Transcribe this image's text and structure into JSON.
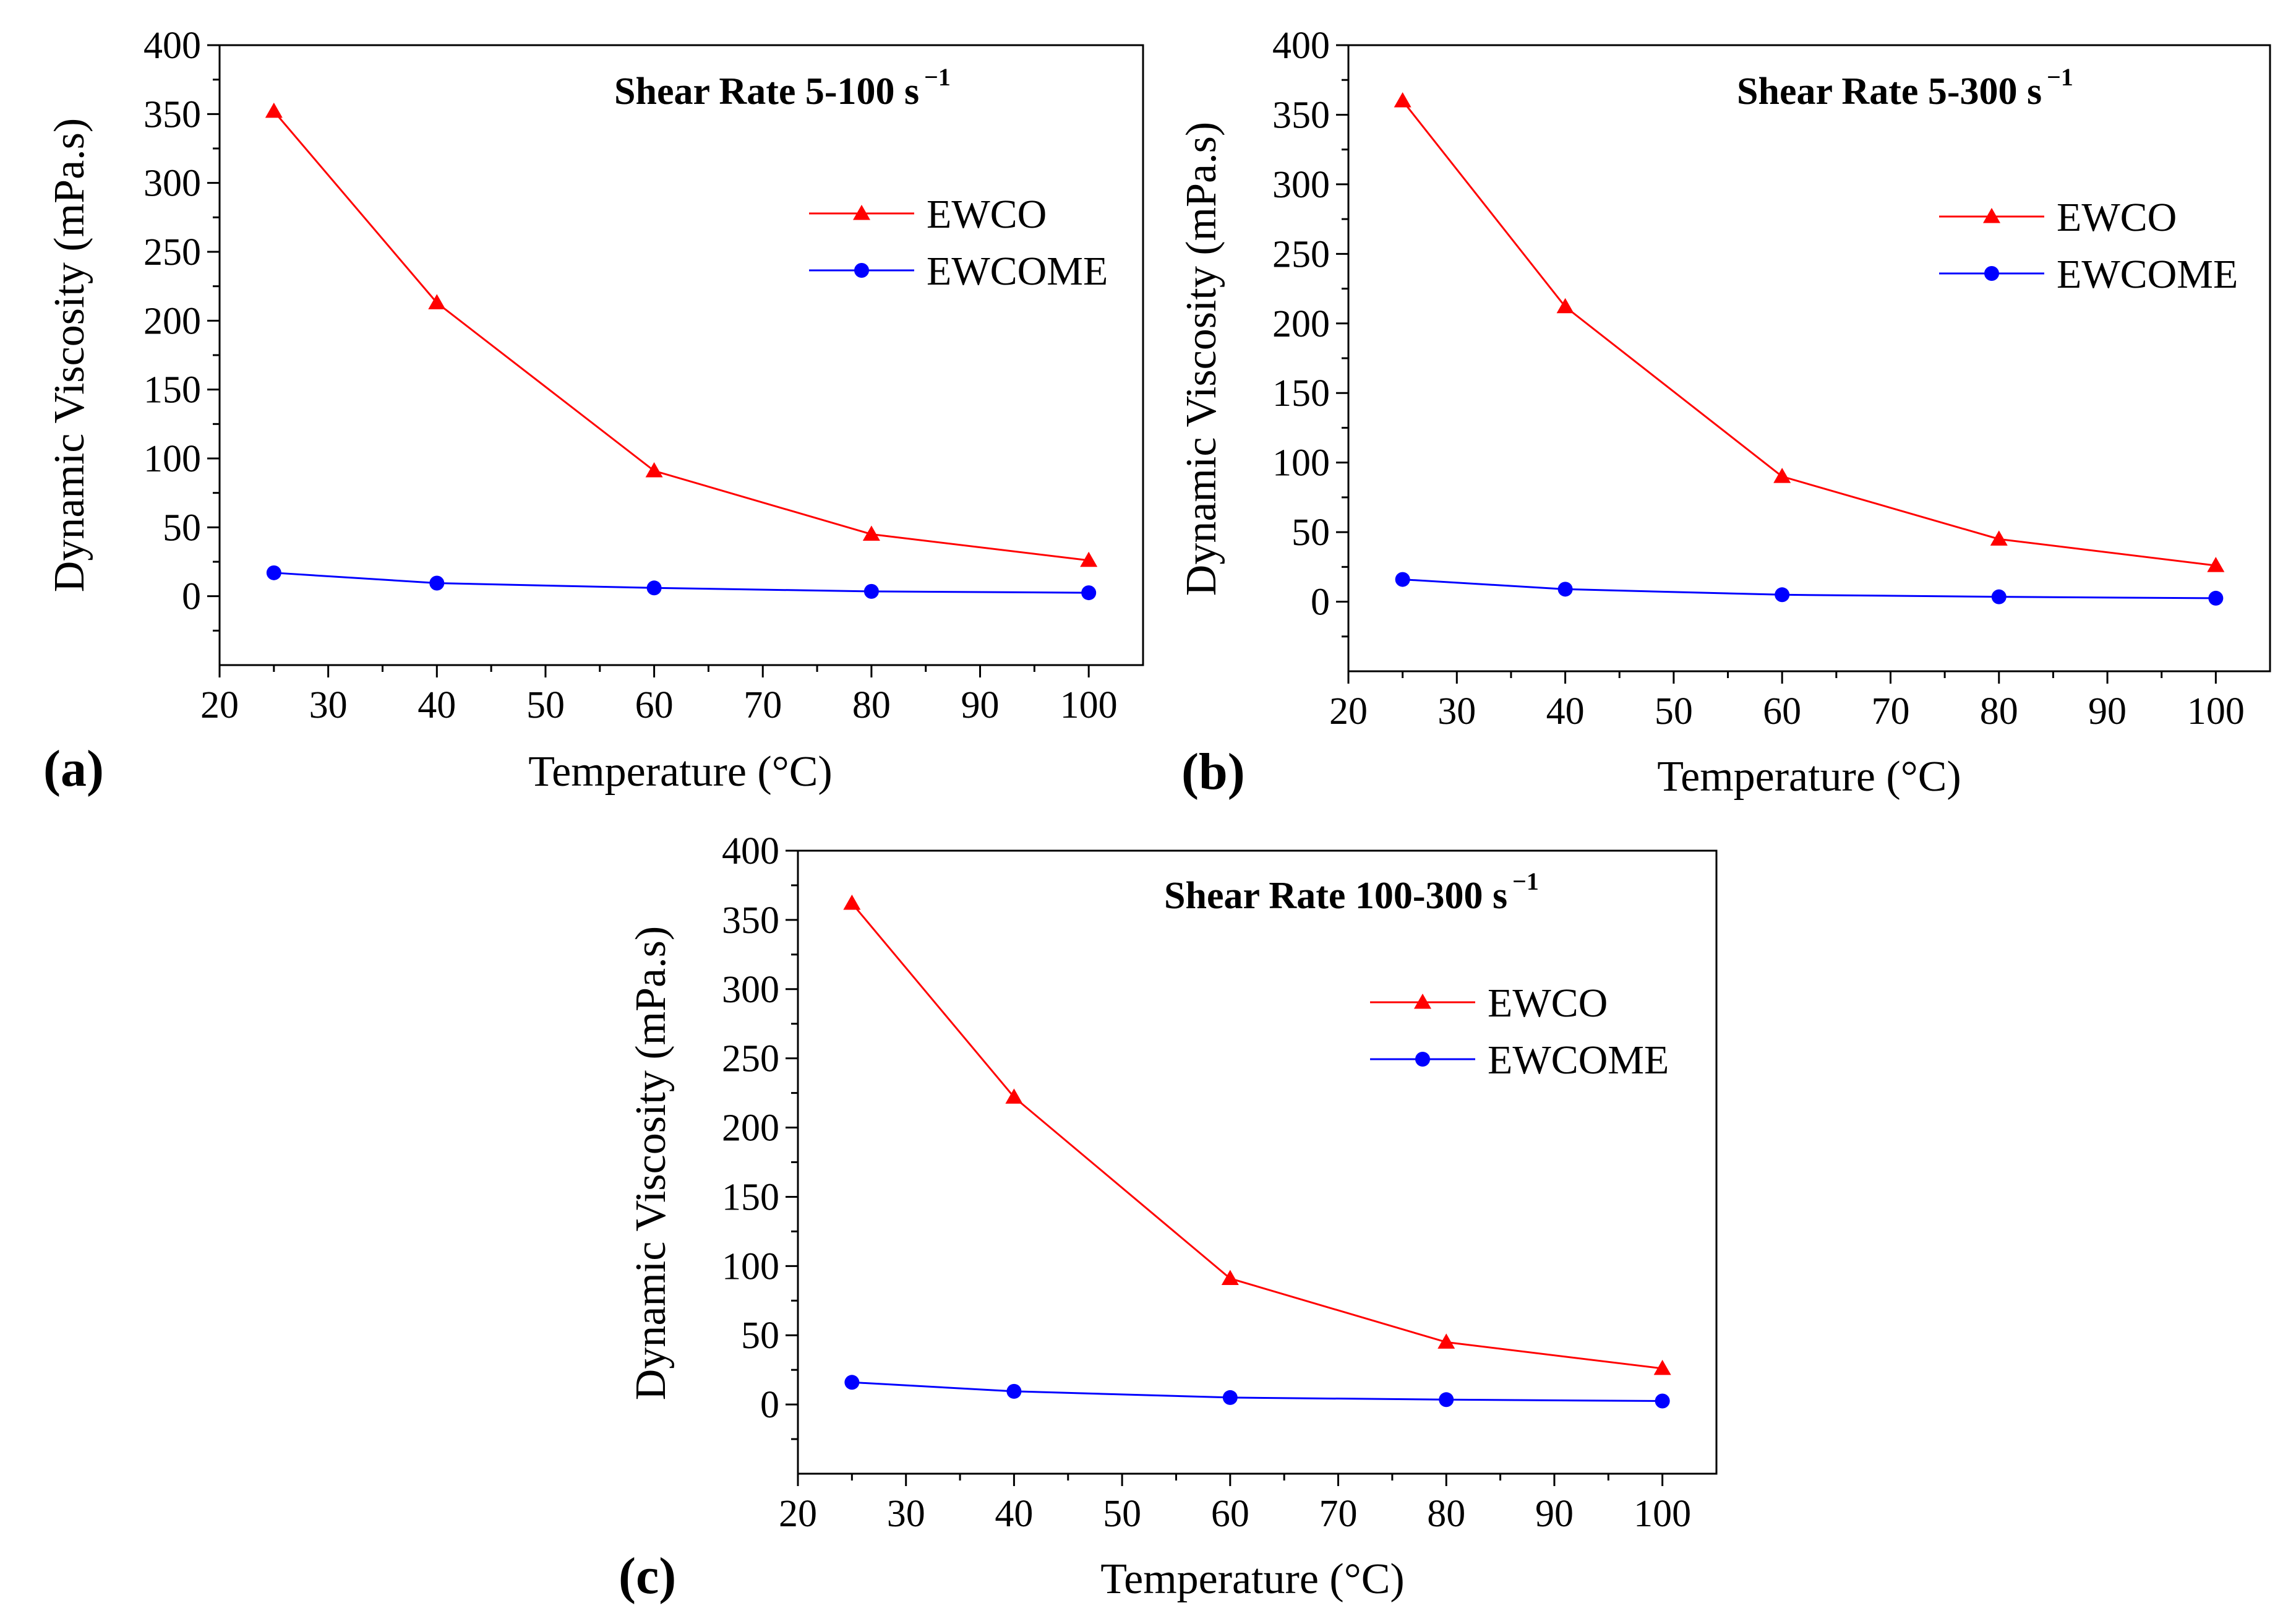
{
  "chart_data": [
    {
      "type": "line",
      "panel_label": "(a)",
      "title": "Shear Rate 5-100 s",
      "title_superscript": "−1",
      "xlabel": "Temperature (°C)",
      "ylabel": "Dynamic Viscosity (mPa.s)",
      "xlim": [
        20,
        105
      ],
      "ylim": [
        -50,
        400
      ],
      "xticks": [
        "20",
        "30",
        "40",
        "50",
        "60",
        "70",
        "80",
        "90",
        "100"
      ],
      "yticks": [
        "0",
        "50",
        "100",
        "150",
        "200",
        "250",
        "300",
        "350",
        "400"
      ],
      "x": [
        25,
        40,
        60,
        80,
        100
      ],
      "series": [
        {
          "name": "EWCO",
          "marker": "triangle",
          "color": "#ff0000",
          "values": [
            352,
            213,
            91,
            45,
            26
          ]
        },
        {
          "name": "EWCOME",
          "marker": "circle",
          "color": "#0000ff",
          "values": [
            17,
            9.5,
            6,
            3.5,
            2.5
          ]
        }
      ]
    },
    {
      "type": "line",
      "panel_label": "(b)",
      "title": "Shear Rate 5-300 s",
      "title_superscript": "−1",
      "xlabel": "Temperature (°C)",
      "ylabel": "Dynamic Viscosity (mPa.s)",
      "xlim": [
        20,
        105
      ],
      "ylim": [
        -50,
        400
      ],
      "xticks": [
        "20",
        "30",
        "40",
        "50",
        "60",
        "70",
        "80",
        "90",
        "100"
      ],
      "yticks": [
        "0",
        "50",
        "100",
        "150",
        "200",
        "250",
        "300",
        "350",
        "400"
      ],
      "x": [
        25,
        40,
        60,
        80,
        100
      ],
      "series": [
        {
          "name": "EWCO",
          "marker": "triangle",
          "color": "#ff0000",
          "values": [
            360,
            212,
            90,
            45,
            26
          ]
        },
        {
          "name": "EWCOME",
          "marker": "circle",
          "color": "#0000ff",
          "values": [
            16,
            9,
            5,
            3.5,
            2.5
          ]
        }
      ]
    },
    {
      "type": "line",
      "panel_label": "(c)",
      "title": "Shear Rate 100-300 s",
      "title_superscript": "−1",
      "xlabel": "Temperature (°C)",
      "ylabel": "Dynamic Viscosity (mPa.s)",
      "xlim": [
        20,
        105
      ],
      "ylim": [
        -50,
        400
      ],
      "xticks": [
        "20",
        "30",
        "40",
        "50",
        "60",
        "70",
        "80",
        "90",
        "100"
      ],
      "yticks": [
        "0",
        "50",
        "100",
        "150",
        "200",
        "250",
        "300",
        "350",
        "400"
      ],
      "x": [
        25,
        40,
        60,
        80,
        100
      ],
      "series": [
        {
          "name": "EWCO",
          "marker": "triangle",
          "color": "#ff0000",
          "values": [
            362,
            222,
            91,
            45,
            26
          ]
        },
        {
          "name": "EWCOME",
          "marker": "circle",
          "color": "#0000ff",
          "values": [
            16,
            9.5,
            5,
            3.5,
            2.5
          ]
        }
      ]
    }
  ]
}
